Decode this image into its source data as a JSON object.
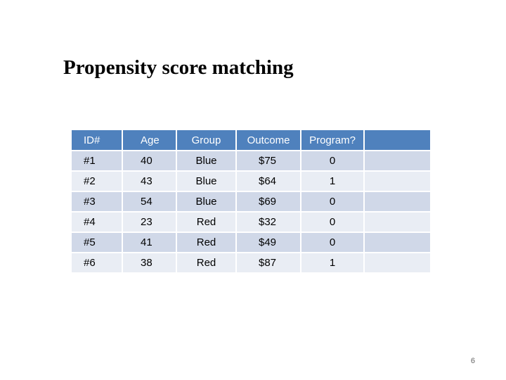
{
  "slide": {
    "title": "Propensity score matching",
    "page_number": "6"
  },
  "table": {
    "headers": [
      "ID#",
      "Age",
      "Group",
      "Outcome",
      "Program?",
      ""
    ],
    "rows": [
      [
        "#1",
        "40",
        "Blue",
        "$75",
        "0",
        ""
      ],
      [
        "#2",
        "43",
        "Blue",
        "$64",
        "1",
        ""
      ],
      [
        "#3",
        "54",
        "Blue",
        "$69",
        "0",
        ""
      ],
      [
        "#4",
        "23",
        "Red",
        "$32",
        "0",
        ""
      ],
      [
        "#5",
        "41",
        "Red",
        "$49",
        "0",
        ""
      ],
      [
        "#6",
        "38",
        "Red",
        "$87",
        "1",
        ""
      ]
    ]
  },
  "colors": {
    "header_bg": "#4f81bd",
    "row_dark_bg": "#d0d8e8",
    "row_light_bg": "#e9edf4"
  }
}
